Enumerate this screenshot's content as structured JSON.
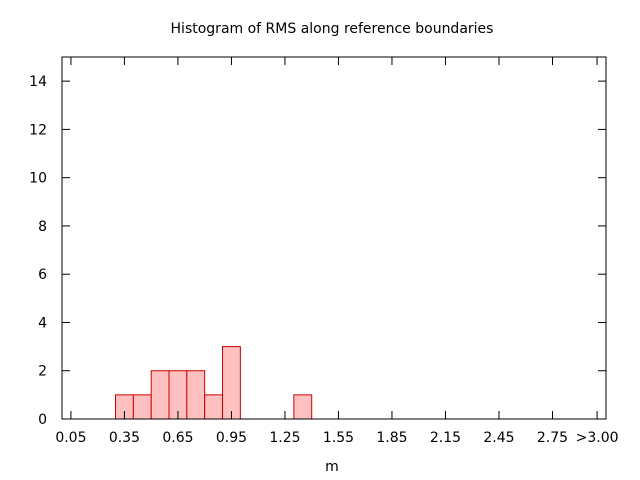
{
  "chart_data": {
    "type": "bar",
    "title": "Histogram of RMS along reference boundaries",
    "xlabel": "m",
    "ylabel": "",
    "ylim": [
      0,
      15
    ],
    "xlim": [
      0.0,
      3.05
    ],
    "grid": false,
    "bin_width": 0.1,
    "bins": [
      {
        "x": 0.35,
        "value": 1
      },
      {
        "x": 0.45,
        "value": 1
      },
      {
        "x": 0.55,
        "value": 2
      },
      {
        "x": 0.65,
        "value": 2
      },
      {
        "x": 0.75,
        "value": 2
      },
      {
        "x": 0.85,
        "value": 1
      },
      {
        "x": 0.95,
        "value": 3
      },
      {
        "x": 1.35,
        "value": 1
      }
    ],
    "x_ticks": [
      {
        "value": 0.05,
        "label": "0.05"
      },
      {
        "value": 0.35,
        "label": "0.35"
      },
      {
        "value": 0.65,
        "label": "0.65"
      },
      {
        "value": 0.95,
        "label": "0.95"
      },
      {
        "value": 1.25,
        "label": "1.25"
      },
      {
        "value": 1.55,
        "label": "1.55"
      },
      {
        "value": 1.85,
        "label": "1.85"
      },
      {
        "value": 2.15,
        "label": "2.15"
      },
      {
        "value": 2.45,
        "label": "2.45"
      },
      {
        "value": 2.75,
        "label": "2.75"
      },
      {
        "value": 3.0,
        "label": ">3.00"
      }
    ],
    "y_ticks": [
      0,
      2,
      4,
      6,
      8,
      10,
      12,
      14
    ],
    "colors": {
      "bar_fill": "#ffc0c0",
      "bar_stroke": "#cc0000",
      "axis": "#000000"
    }
  }
}
